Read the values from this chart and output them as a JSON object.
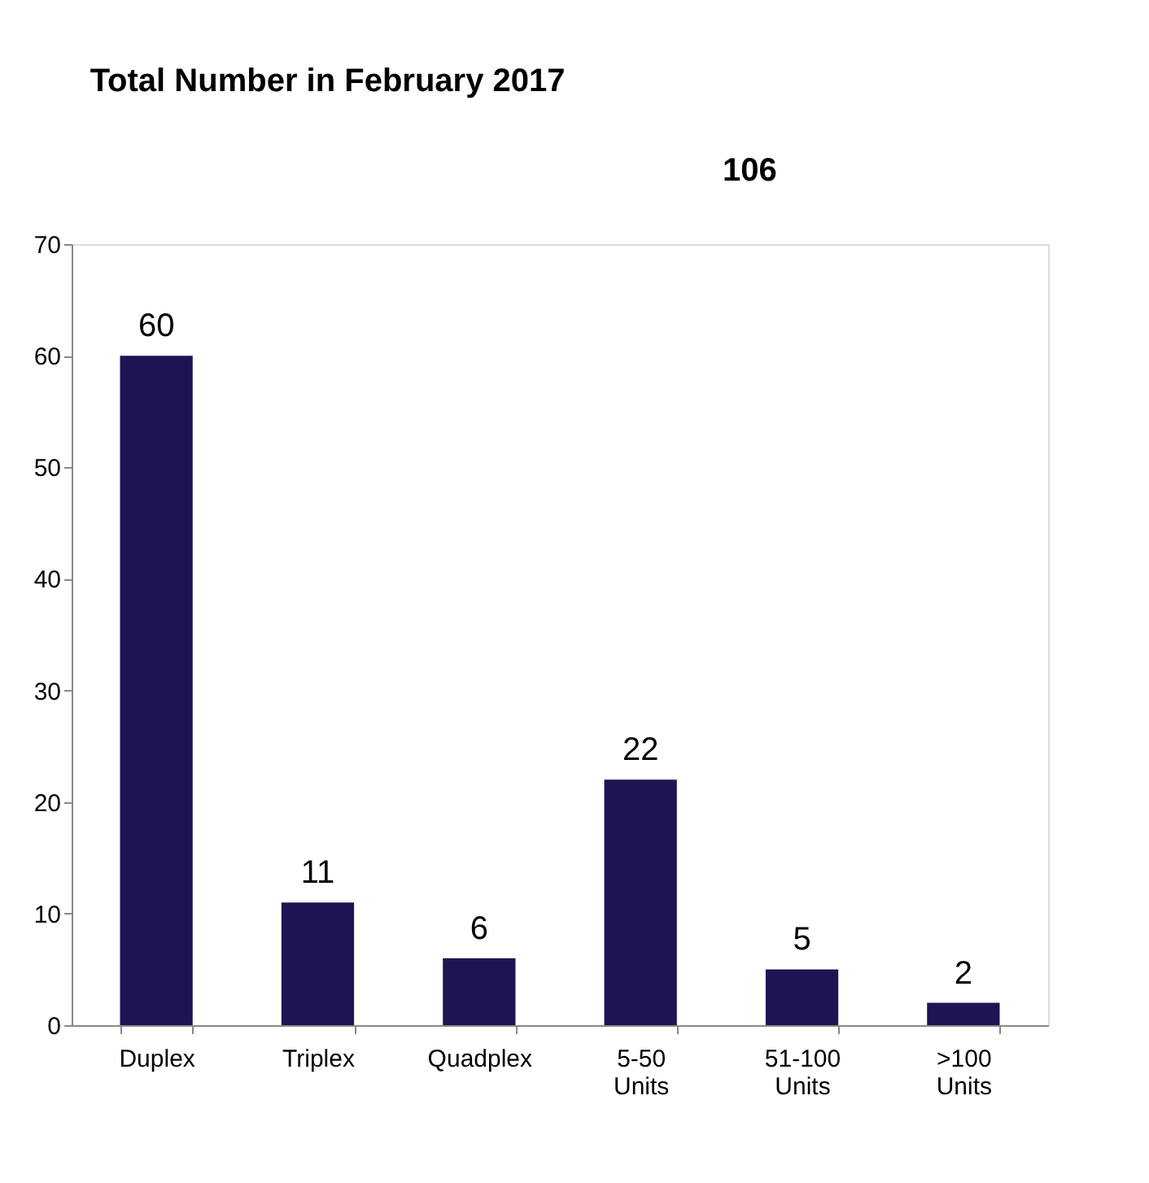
{
  "chart_data": {
    "type": "bar",
    "title": "Total Number in February 2017",
    "annotations": [
      "106"
    ],
    "categories": [
      "Duplex",
      "Triplex",
      "Quadplex",
      "5-50 Units",
      "51-100 Units",
      ">100 Units"
    ],
    "values": [
      60,
      11,
      6,
      22,
      5,
      2
    ],
    "color": "#1f1453",
    "data_labels": true,
    "ylim": [
      0,
      70
    ],
    "yticks": [
      0,
      10,
      20,
      30,
      40,
      50,
      60,
      70
    ],
    "grid": false
  }
}
